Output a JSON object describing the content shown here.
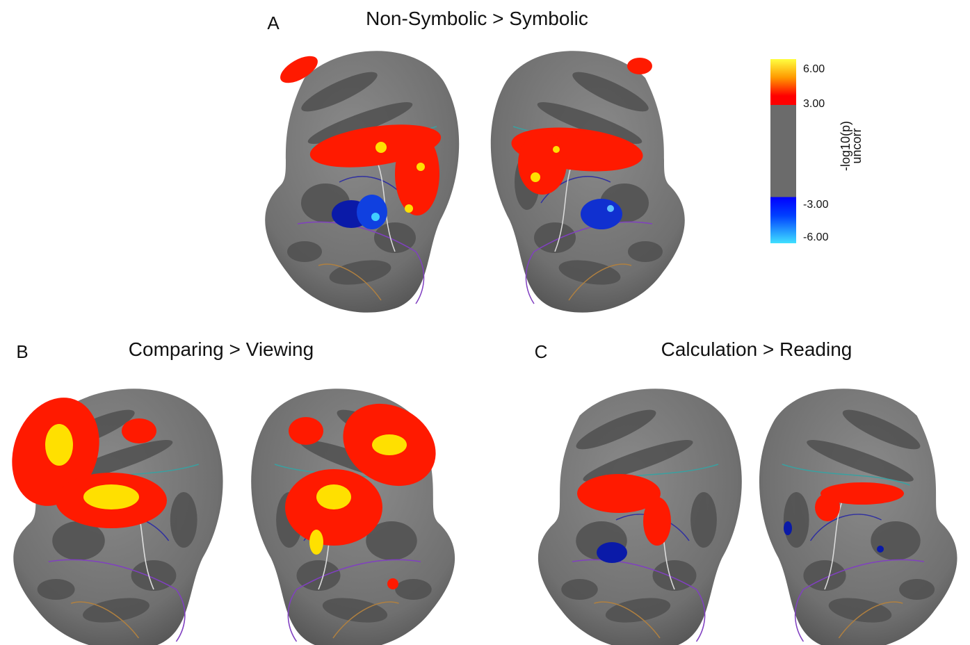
{
  "panels": [
    {
      "letter": "A",
      "title": "Non-Symbolic > Symbolic"
    },
    {
      "letter": "B",
      "title": "Comparing > Viewing"
    },
    {
      "letter": "C",
      "title": "Calculation > Reading"
    }
  ],
  "colorbar": {
    "ticks": [
      "6.00",
      "3.00",
      "-3.00",
      "-6.00"
    ],
    "label": "-log10(p)",
    "sublabel": "uncorr"
  }
}
